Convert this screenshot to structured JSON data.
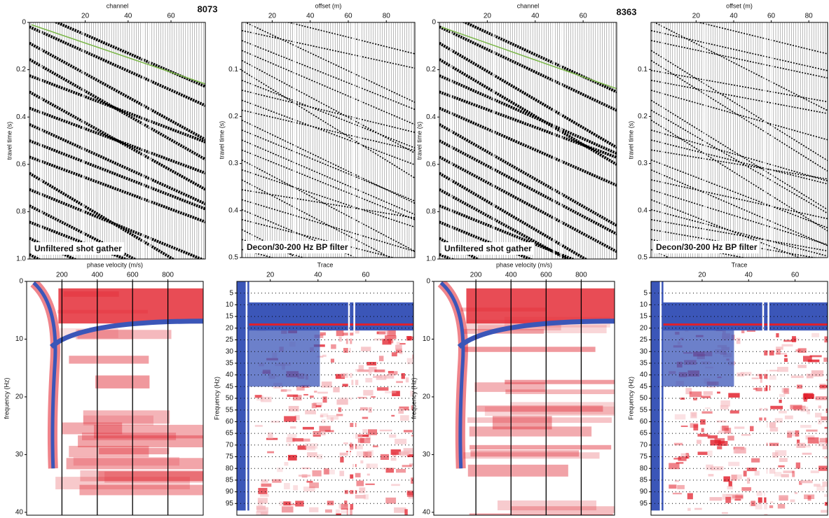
{
  "figure_labels": [
    "8073",
    "8363"
  ],
  "chart_data": [
    {
      "type": "wiggle",
      "xlabel": "channel",
      "ylabel": "travel time (s)",
      "xlim": [
        -6,
        76
      ],
      "ylim": [
        0,
        1
      ],
      "xticks": [
        20,
        40,
        60
      ],
      "yticks": [
        0,
        0.2,
        0.4,
        0.6,
        0.8,
        {
          "value": 1,
          "label": "1.0"
        }
      ],
      "annotation": "Unfiltered shot gather",
      "series": [
        {
          "color": "#7ab648",
          "x": [
            -5,
            76
          ],
          "values": [
            0.01,
            0.26
          ]
        }
      ]
    },
    {
      "type": "wiggle",
      "xlabel": "offset (m)",
      "ylabel": "travel time (s)",
      "xlim": [
        4,
        95
      ],
      "ylim": [
        0,
        0.5
      ],
      "xticks": [
        20,
        40,
        60,
        80
      ],
      "yticks": [
        0.1,
        0.2,
        0.3,
        0.4,
        0.5
      ],
      "annotation": "Decon/30-200 Hz BP filter"
    },
    {
      "type": "wiggle",
      "xlabel": "channel",
      "ylabel": "travel time (s)",
      "xlim": [
        0,
        74
      ],
      "ylim": [
        0,
        1
      ],
      "xticks": [
        20,
        40,
        60
      ],
      "yticks": [
        0,
        0.2,
        0.4,
        0.6,
        0.8,
        {
          "value": 1,
          "label": "1.0"
        }
      ],
      "annotation": "Unfiltered shot gather",
      "series": [
        {
          "color": "#7ab648",
          "x": [
            1,
            74
          ],
          "values": [
            0.02,
            0.28
          ]
        }
      ]
    },
    {
      "type": "wiggle",
      "xlabel": "offset (m)",
      "ylabel": "travel time (s)",
      "xlim": [
        -4,
        90
      ],
      "ylim": [
        0,
        0.5
      ],
      "xticks": [
        20,
        40,
        60,
        80
      ],
      "yticks": [
        0.1,
        0.2,
        0.3,
        0.4,
        0.5
      ],
      "annotation": "Decon/30-200 Hz BP filter"
    },
    {
      "type": "dispersion",
      "xlabel": "phase velocity (m/s)",
      "ylabel": "frequency (Hz)",
      "xlim": [
        0,
        1000
      ],
      "ylim": [
        0,
        40.5
      ],
      "xticks": [
        200,
        400,
        600,
        800
      ],
      "yticks": [
        0,
        10,
        20,
        30,
        40
      ],
      "grid": "x"
    },
    {
      "type": "spectrum",
      "xlabel": "Trace",
      "ylabel": "Frequency (Hz)",
      "xlim": [
        6,
        80
      ],
      "ylim": [
        0,
        100
      ],
      "xticks": [
        20,
        40,
        60
      ],
      "yticks": [
        5,
        10,
        15,
        20,
        25,
        30,
        35,
        40,
        45,
        50,
        55,
        60,
        65,
        70,
        75,
        80,
        85,
        90,
        95
      ],
      "grid": "y"
    },
    {
      "type": "dispersion",
      "xlabel": "phase velocity (m/s)",
      "ylabel": "frequency (Hz)",
      "xlim": [
        -40,
        990
      ],
      "ylim": [
        0,
        40.5
      ],
      "xticks": [
        200,
        400,
        600,
        800
      ],
      "yticks": [
        0,
        10,
        20,
        30,
        40
      ],
      "grid": "x"
    },
    {
      "type": "spectrum",
      "xlabel": "Trace",
      "ylabel": "Frequency (Hz)",
      "xlim": [
        -2,
        74
      ],
      "ylim": [
        0,
        100
      ],
      "xticks": [
        20,
        40,
        60
      ],
      "yticks": [
        5,
        10,
        15,
        20,
        25,
        30,
        35,
        40,
        45,
        50,
        55,
        60,
        65,
        70,
        75,
        80,
        85,
        90,
        95
      ],
      "grid": "y"
    }
  ]
}
